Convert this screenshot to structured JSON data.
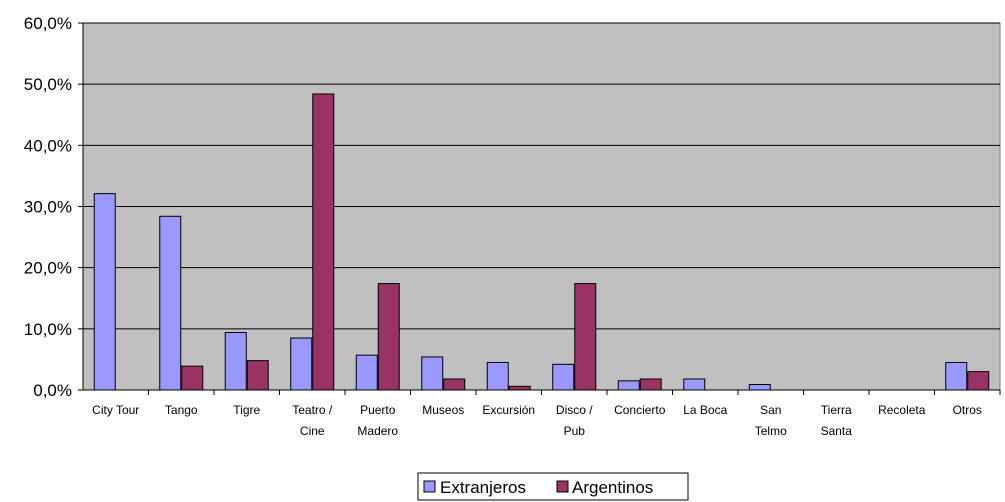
{
  "chart_data": {
    "type": "bar",
    "categories": [
      [
        "City Tour"
      ],
      [
        "Tango"
      ],
      [
        "Tigre"
      ],
      [
        "Teatro /",
        "Cine"
      ],
      [
        "Puerto",
        "Madero"
      ],
      [
        "Museos"
      ],
      [
        "Excursión"
      ],
      [
        "Disco /",
        "Pub"
      ],
      [
        "Concierto"
      ],
      [
        "La Boca"
      ],
      [
        "San",
        "Telmo"
      ],
      [
        "Tierra",
        "Santa"
      ],
      [
        "Recoleta"
      ],
      [
        "Otros"
      ]
    ],
    "series": [
      {
        "name": "Extranjeros",
        "color": "#9999ff",
        "values": [
          32.1,
          28.4,
          9.4,
          8.5,
          5.7,
          5.4,
          4.5,
          4.2,
          1.5,
          1.8,
          0.9,
          0,
          0,
          4.5
        ]
      },
      {
        "name": "Argentinos",
        "color": "#993366",
        "values": [
          0,
          3.9,
          4.8,
          48.4,
          17.4,
          1.8,
          0.6,
          17.4,
          1.8,
          0,
          0,
          0,
          0,
          3.0
        ]
      }
    ],
    "ylim": [
      0,
      60
    ],
    "yticks": [
      "0,0%",
      "10,0%",
      "20,0%",
      "30,0%",
      "40,0%",
      "50,0%",
      "60,0%"
    ],
    "plot_background": "#c0c0c0",
    "grid": true,
    "legend": "bottom-center"
  }
}
